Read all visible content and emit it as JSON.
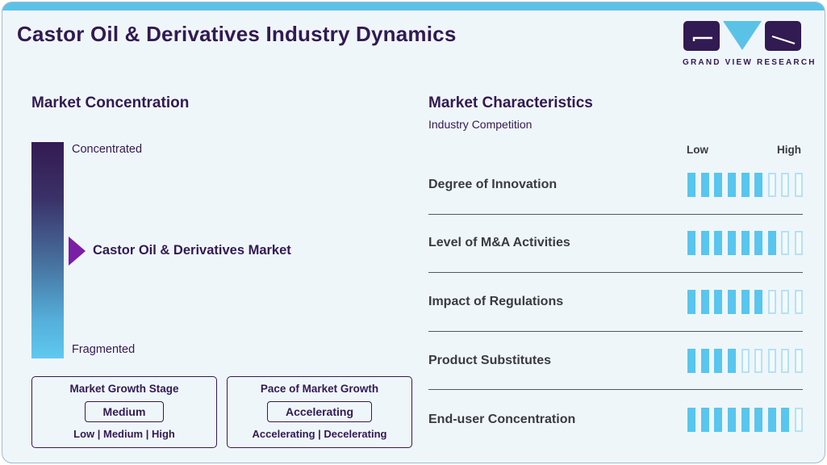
{
  "header": {
    "title": "Castor Oil & Derivatives Industry Dynamics",
    "logo_wordmark": "GRAND VIEW RESEARCH"
  },
  "market_concentration": {
    "heading": "Market Concentration",
    "top_label": "Concentrated",
    "bottom_label": "Fragmented",
    "pointer_label": "Castor Oil & Derivatives Market"
  },
  "growth_stage_box": {
    "title": "Market Growth Stage",
    "selected": "Medium",
    "options": "Low | Medium | High"
  },
  "pace_box": {
    "title": "Pace of Market Growth",
    "selected": "Accelerating",
    "options": "Accelerating | Decelerating"
  },
  "market_characteristics": {
    "heading": "Market Characteristics",
    "subheading": "Industry Competition",
    "scale_low": "Low",
    "scale_high": "High",
    "rows": [
      {
        "label": "Degree of Innovation",
        "filled": 6,
        "total": 9
      },
      {
        "label": "Level of M&A Activities",
        "filled": 7,
        "total": 9
      },
      {
        "label": "Impact of Regulations",
        "filled": 6,
        "total": 9
      },
      {
        "label": "Product Substitutes",
        "filled": 4,
        "total": 9
      },
      {
        "label": "End-user Concentration",
        "filled": 8,
        "total": 9
      }
    ]
  },
  "colors": {
    "purple": "#321a52",
    "accent": "#5bc2e7",
    "seg-fill": "#58c6ee",
    "seg-empty-border": "#b3e2f7",
    "arrow": "#7a1ea6",
    "label-dark": "#3a3a43"
  },
  "chart_data": {
    "type": "bar",
    "title": "Market Characteristics — Industry Competition",
    "categories": [
      "Degree of Innovation",
      "Level of M&A Activities",
      "Impact of Regulations",
      "Product Substitutes",
      "End-user Concentration"
    ],
    "values": [
      6,
      7,
      6,
      4,
      8
    ],
    "scale_max": 9,
    "xlabel": "Rating (Low to High)",
    "ylabel": "",
    "legend": null,
    "notes": "Each row shows filled blocks out of 9 on a Low-to-High scale; qualitative gauges: market concentration between Concentrated and Fragmented, growth stage Medium, pace Accelerating"
  }
}
